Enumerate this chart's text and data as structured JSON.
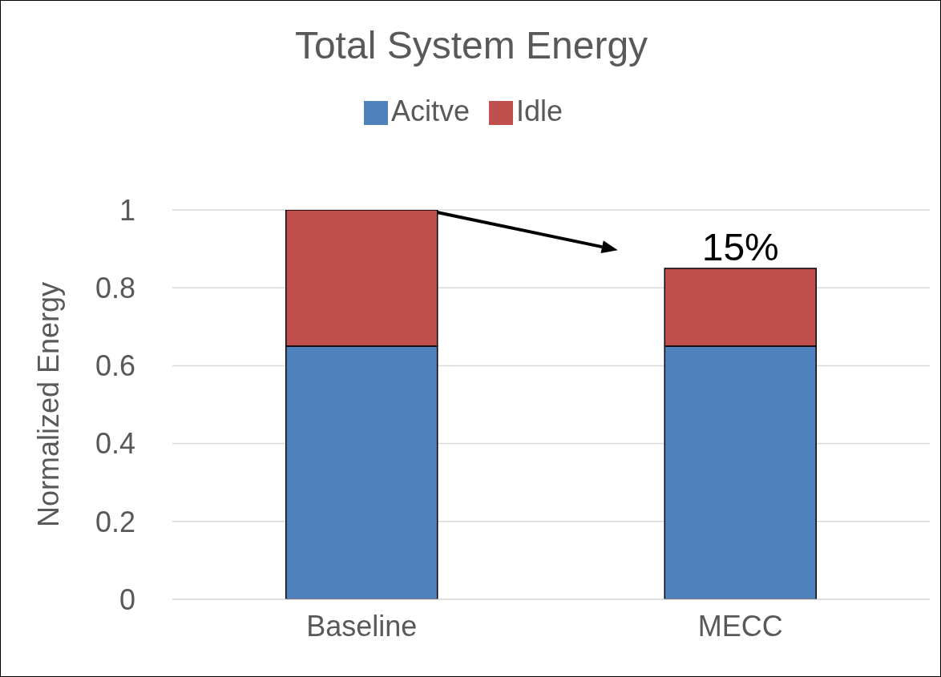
{
  "chart_data": {
    "type": "bar",
    "title": "Total System Energy",
    "ylabel": "Normalized Energy",
    "categories": [
      "Baseline",
      "MECC"
    ],
    "stacked": true,
    "series": [
      {
        "name": "Acitve",
        "color": "#4f81bd",
        "values": [
          0.65,
          0.65
        ]
      },
      {
        "name": "Idle",
        "color": "#c0504d",
        "values": [
          0.35,
          0.2
        ]
      }
    ],
    "ylim": [
      0,
      1
    ],
    "yticks": [
      0,
      0.2,
      0.4,
      0.6,
      0.8,
      1
    ],
    "grid": "y",
    "legend": "top",
    "annotations": [
      {
        "text": "15%",
        "x": "MECC",
        "y": 0.85
      }
    ]
  }
}
